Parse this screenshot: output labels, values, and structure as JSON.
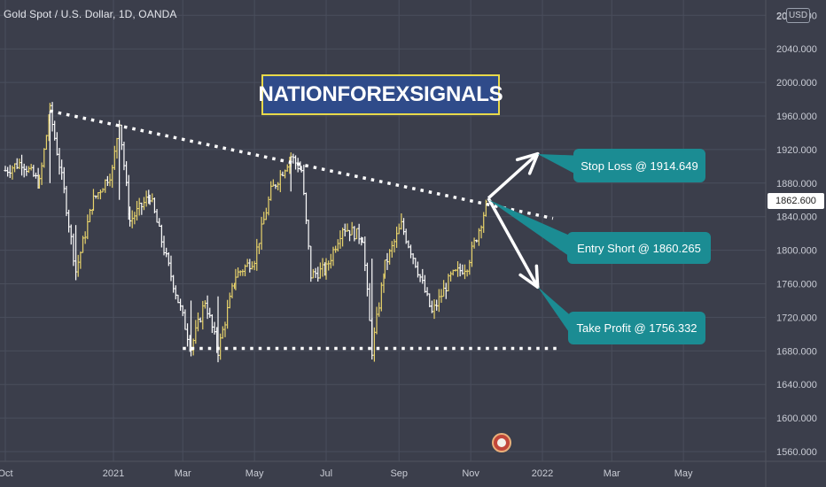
{
  "header": {
    "symbol_title": "Gold Spot / U.S. Dollar, 1D, OANDA",
    "currency": "USD"
  },
  "brand": {
    "text": "NATIONFOREXSIGNALS"
  },
  "last_price": {
    "label": "1862.600",
    "value": 1862.6
  },
  "callouts": {
    "stop_loss": "Stop Loss @ 1914.649",
    "entry_short": "Entry Short @ 1860.265",
    "take_profit": "Take Profit @ 1756.332"
  },
  "colors": {
    "background": "#3b3e4b",
    "candle": "#e8d36b",
    "candle_alt": "#ffffff",
    "grid": "#4a4e5c",
    "axis_text": "#c9ccd5",
    "callout": "#1b8c93",
    "brand_bg": "#2f4b8a",
    "brand_border": "#e8d94a"
  },
  "chart_data": {
    "type": "ohlc",
    "title": "Gold Spot / U.S. Dollar, 1D, OANDA",
    "y_ticks": [
      "1560.000",
      "1600.000",
      "1640.000",
      "1680.000",
      "1720.000",
      "1760.000",
      "1800.000",
      "1840.000",
      "1880.000",
      "1920.000",
      "1960.000",
      "2000.000",
      "2040.000",
      "2080.000"
    ],
    "y_top_label": "20",
    "ylim": [
      1552,
      2104
    ],
    "x_ticks": [
      "Oct",
      "2021",
      "Mar",
      "May",
      "Jul",
      "Sep",
      "Nov",
      "2022",
      "Mar",
      "May"
    ],
    "x_tick_dates": [
      "2020-10-01",
      "2021-01-01",
      "2021-03-01",
      "2021-05-01",
      "2021-07-01",
      "2021-09-01",
      "2021-11-01",
      "2022-01-01",
      "2022-03-01",
      "2022-05-01"
    ],
    "grid": true,
    "series": [
      {
        "values": [
          {
            "date": "2020-10-01",
            "close": 1895
          },
          {
            "date": "2020-10-15",
            "close": 1905
          },
          {
            "date": "2020-10-30",
            "close": 1880
          },
          {
            "date": "2020-11-08",
            "close": 1966
          },
          {
            "date": "2020-11-20",
            "close": 1870
          },
          {
            "date": "2020-11-30",
            "close": 1775
          },
          {
            "date": "2020-12-15",
            "close": 1860
          },
          {
            "date": "2020-12-31",
            "close": 1895
          },
          {
            "date": "2021-01-06",
            "close": 1955
          },
          {
            "date": "2021-01-15",
            "close": 1835
          },
          {
            "date": "2021-02-01",
            "close": 1865
          },
          {
            "date": "2021-02-15",
            "close": 1790
          },
          {
            "date": "2021-03-01",
            "close": 1720
          },
          {
            "date": "2021-03-08",
            "close": 1683
          },
          {
            "date": "2021-03-20",
            "close": 1740
          },
          {
            "date": "2021-03-31",
            "close": 1680
          },
          {
            "date": "2021-04-15",
            "close": 1770
          },
          {
            "date": "2021-05-01",
            "close": 1790
          },
          {
            "date": "2021-05-15",
            "close": 1870
          },
          {
            "date": "2021-06-01",
            "close": 1912
          },
          {
            "date": "2021-06-10",
            "close": 1895
          },
          {
            "date": "2021-06-18",
            "close": 1770
          },
          {
            "date": "2021-07-01",
            "close": 1778
          },
          {
            "date": "2021-07-15",
            "close": 1828
          },
          {
            "date": "2021-08-01",
            "close": 1815
          },
          {
            "date": "2021-08-09",
            "close": 1680
          },
          {
            "date": "2021-08-20",
            "close": 1782
          },
          {
            "date": "2021-09-03",
            "close": 1830
          },
          {
            "date": "2021-09-15",
            "close": 1785
          },
          {
            "date": "2021-09-29",
            "close": 1725
          },
          {
            "date": "2021-10-15",
            "close": 1768
          },
          {
            "date": "2021-10-29",
            "close": 1782
          },
          {
            "date": "2021-11-08",
            "close": 1825
          },
          {
            "date": "2021-11-16",
            "close": 1862
          }
        ]
      }
    ],
    "annotations": {
      "trendlines": [
        {
          "style": "dotted",
          "from": {
            "date": "2020-11-08",
            "price": 1966
          },
          "to": {
            "date": "2022-01-10",
            "price": 1838
          }
        },
        {
          "style": "dotted",
          "from": {
            "date": "2021-03-01",
            "price": 1683
          },
          "to": {
            "date": "2022-01-15",
            "price": 1683
          }
        }
      ],
      "arrows": [
        {
          "from": {
            "date": "2021-11-16",
            "price": 1862
          },
          "to": {
            "date": "2021-12-28",
            "price": 1915
          },
          "target": "stop_loss"
        },
        {
          "from": {
            "date": "2021-11-16",
            "price": 1862
          },
          "to": {
            "date": "2021-12-28",
            "price": 1756
          },
          "target": "take_profit"
        }
      ],
      "entry_price": 1860.265,
      "stop_loss_price": 1914.649,
      "take_profit_price": 1756.332
    }
  }
}
